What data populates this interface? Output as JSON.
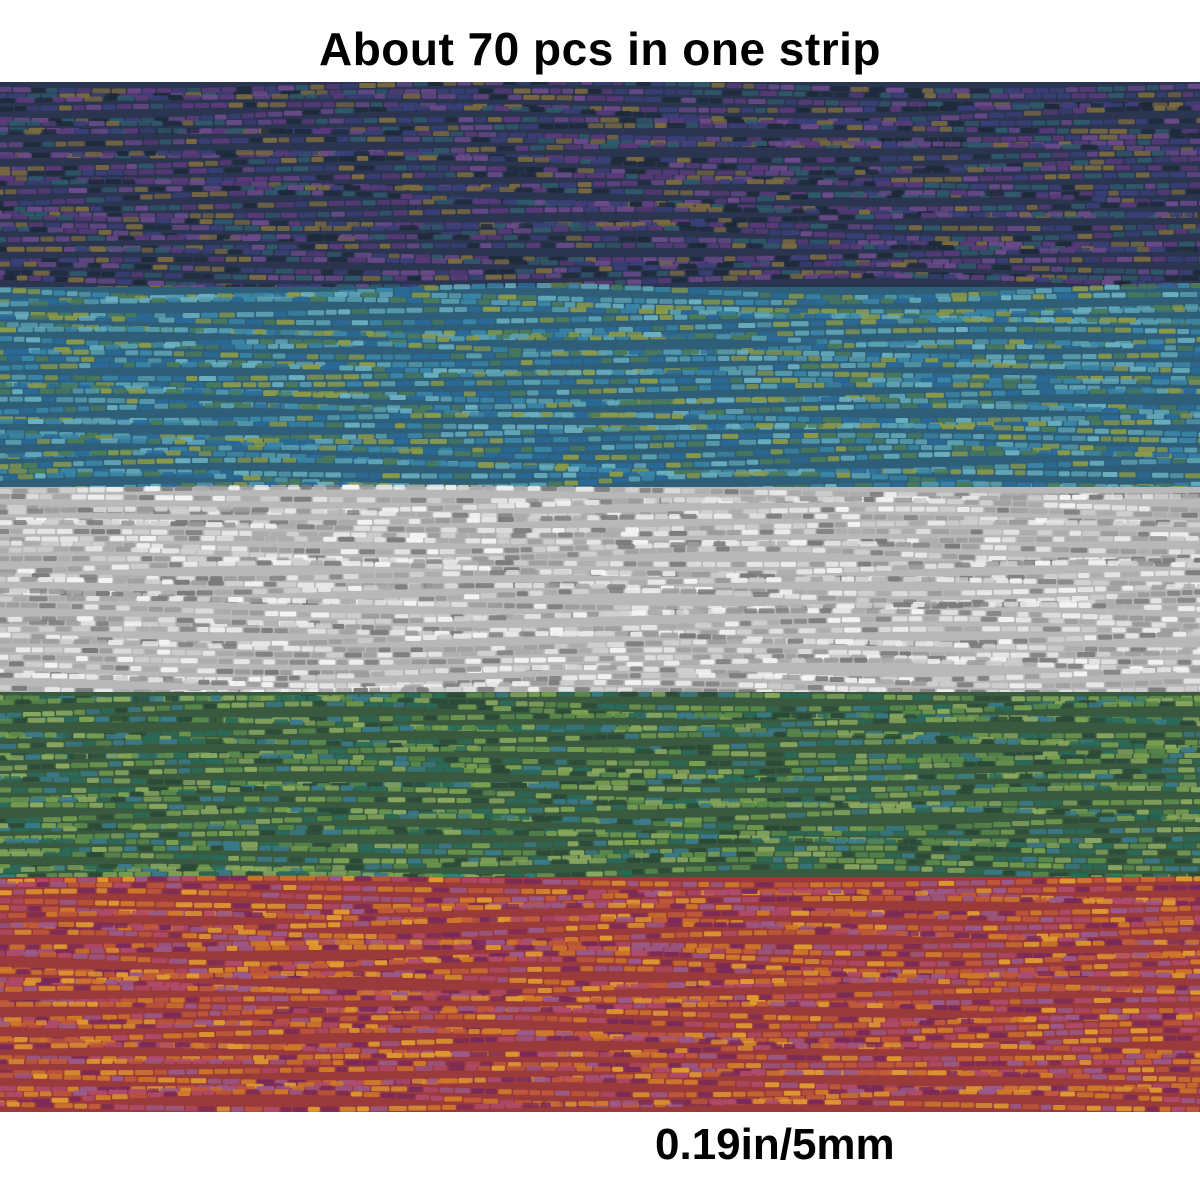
{
  "caption": {
    "title": "About 70 pcs in one strip",
    "measurement": "0.19in/5mm"
  },
  "photo": {
    "subject": "bundled strands of bugle beads",
    "bands": [
      {
        "name": "purple-blue-iris",
        "base": "#2c3550",
        "accents": [
          "#3a3f78",
          "#5a3a7a",
          "#2f5a6a",
          "#6a4a8a",
          "#1e2a3a",
          "#7a6a40"
        ]
      },
      {
        "name": "teal-blue-iris",
        "base": "#2f5f78",
        "accents": [
          "#3a86a8",
          "#5aa0b0",
          "#8a9a4a",
          "#2a6a9a",
          "#6ab0c0",
          "#4a7a5a"
        ]
      },
      {
        "name": "silver",
        "base": "#b8b8b8",
        "accents": [
          "#e8e8e8",
          "#9a9a9a",
          "#d0d0d0",
          "#7a7a7a",
          "#f4f4f4",
          "#aaaaaa"
        ]
      },
      {
        "name": "green-iris",
        "base": "#3a5a40",
        "accents": [
          "#5a8a4a",
          "#7aa050",
          "#2a6a5a",
          "#3a7a8a",
          "#8aa860",
          "#2a4a38"
        ]
      },
      {
        "name": "orange-magenta-iris",
        "base": "#9a3a3a",
        "accents": [
          "#d0782a",
          "#b04a6a",
          "#e09a30",
          "#7a2a5a",
          "#c05a3a",
          "#9a5a8a"
        ]
      }
    ]
  }
}
